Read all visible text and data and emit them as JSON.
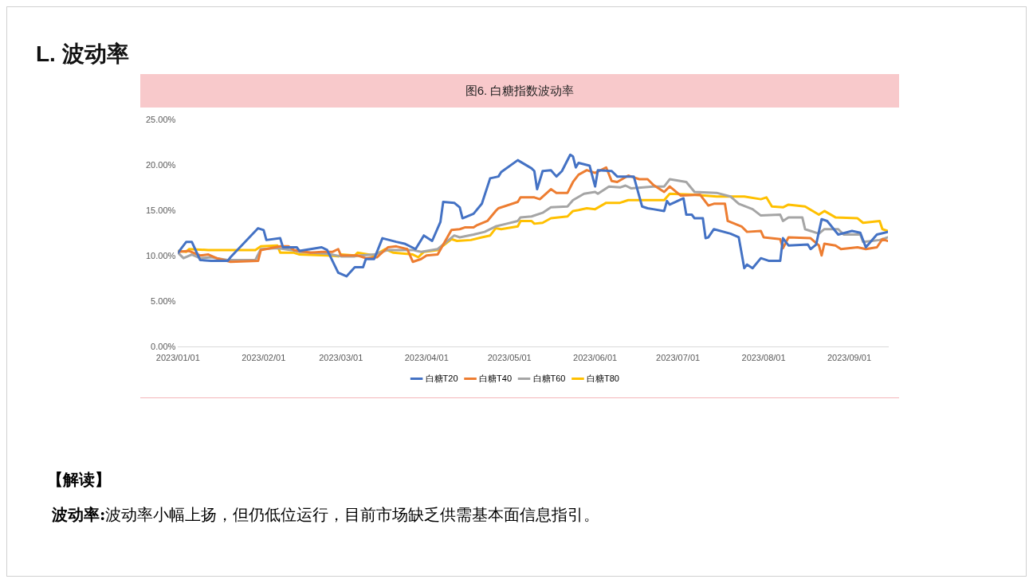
{
  "chart_data": {
    "type": "line",
    "title": "图6. 白糖指数波动率",
    "annotations": [
      "L. 波动率",
      "【解读】",
      "波动率:",
      "波动率小幅上扬，但仍低位运行，目前市场缺乏供需基本面信息指引。"
    ],
    "xlim": [
      "2023-01-01",
      "2023-09-15"
    ],
    "xticks": [
      {
        "value": "2023-01-01",
        "label": "2023/01/01"
      },
      {
        "value": "2023-02-01",
        "label": "2023/02/01"
      },
      {
        "value": "2023-03-01",
        "label": "2023/03/01"
      },
      {
        "value": "2023-04-01",
        "label": "2023/04/01"
      },
      {
        "value": "2023-05-01",
        "label": "2023/05/01"
      },
      {
        "value": "2023-06-01",
        "label": "2023/06/01"
      },
      {
        "value": "2023-07-01",
        "label": "2023/07/01"
      },
      {
        "value": "2023-08-01",
        "label": "2023/08/01"
      },
      {
        "value": "2023-09-01",
        "label": "2023/09/01"
      }
    ],
    "ylim": [
      0,
      25
    ],
    "yticks": [
      {
        "value": 0,
        "label": "0.00%"
      },
      {
        "value": 5,
        "label": "5.00%"
      },
      {
        "value": 10,
        "label": "10.00%"
      },
      {
        "value": 15,
        "label": "15.00%"
      },
      {
        "value": 20,
        "label": "20.00%"
      },
      {
        "value": 25,
        "label": "25.00%"
      }
    ],
    "grid": false,
    "legend": "bottom",
    "marker": "none",
    "line_style": "solid",
    "series": [
      {
        "name": "白糖T20",
        "color": "#4472c4",
        "x": [
          "2023-01-01",
          "2023-01-04",
          "2023-01-06",
          "2023-01-09",
          "2023-01-13",
          "2023-01-19",
          "2023-01-20",
          "2023-01-30",
          "2023-02-01",
          "2023-02-02",
          "2023-02-07",
          "2023-02-08",
          "2023-02-13",
          "2023-02-14",
          "2023-02-22",
          "2023-02-24",
          "2023-02-28",
          "2023-03-03",
          "2023-03-06",
          "2023-03-09",
          "2023-03-10",
          "2023-03-13",
          "2023-03-16",
          "2023-03-21",
          "2023-03-24",
          "2023-03-28",
          "2023-03-31",
          "2023-04-03",
          "2023-04-06",
          "2023-04-07",
          "2023-04-11",
          "2023-04-13",
          "2023-04-14",
          "2023-04-18",
          "2023-04-21",
          "2023-04-24",
          "2023-04-27",
          "2023-04-28",
          "2023-05-04",
          "2023-05-09",
          "2023-05-10",
          "2023-05-11",
          "2023-05-13",
          "2023-05-16",
          "2023-05-18",
          "2023-05-20",
          "2023-05-23",
          "2023-05-24",
          "2023-05-25",
          "2023-05-26",
          "2023-05-30",
          "2023-06-01",
          "2023-06-02",
          "2023-06-07",
          "2023-06-09",
          "2023-06-15",
          "2023-06-18",
          "2023-06-20",
          "2023-06-22",
          "2023-06-26",
          "2023-06-27",
          "2023-06-28",
          "2023-07-03",
          "2023-07-04",
          "2023-07-06",
          "2023-07-07",
          "2023-07-10",
          "2023-07-11",
          "2023-07-12",
          "2023-07-14",
          "2023-07-20",
          "2023-07-23",
          "2023-07-25",
          "2023-07-26",
          "2023-07-28",
          "2023-07-31",
          "2023-08-03",
          "2023-08-07",
          "2023-08-08",
          "2023-08-10",
          "2023-08-17",
          "2023-08-18",
          "2023-08-20",
          "2023-08-22",
          "2023-08-24",
          "2023-08-28",
          "2023-09-02",
          "2023-09-05",
          "2023-09-07",
          "2023-09-11",
          "2023-09-15"
        ],
        "values": [
          10.4,
          11.6,
          11.6,
          9.6,
          9.5,
          9.5,
          9.9,
          13.1,
          12.9,
          11.8,
          12.0,
          11.0,
          11.0,
          10.6,
          11.0,
          10.7,
          8.2,
          7.8,
          8.8,
          8.8,
          9.7,
          9.7,
          12.0,
          11.6,
          11.4,
          10.8,
          12.3,
          11.7,
          13.8,
          16.0,
          15.9,
          15.4,
          14.2,
          14.7,
          15.8,
          18.6,
          18.8,
          19.3,
          20.6,
          19.7,
          19.4,
          17.4,
          19.4,
          19.5,
          18.8,
          19.4,
          21.2,
          21.0,
          19.8,
          20.3,
          20.0,
          17.7,
          19.5,
          19.4,
          18.8,
          18.8,
          15.5,
          15.3,
          15.2,
          15.0,
          16.1,
          15.7,
          16.4,
          14.6,
          14.6,
          14.2,
          14.2,
          12.0,
          12.1,
          13.0,
          12.5,
          12.1,
          8.7,
          9.1,
          8.7,
          9.8,
          9.5,
          9.5,
          12.0,
          11.2,
          11.3,
          10.8,
          11.3,
          14.1,
          13.9,
          12.4,
          12.8,
          12.6,
          11.0,
          12.4,
          12.7
        ]
      },
      {
        "name": "白糖T40",
        "color": "#ed7d31",
        "x": [
          "2023-01-01",
          "2023-01-05",
          "2023-01-09",
          "2023-01-12",
          "2023-01-15",
          "2023-01-20",
          "2023-01-30",
          "2023-01-31",
          "2023-02-07",
          "2023-02-10",
          "2023-02-12",
          "2023-02-18",
          "2023-02-22",
          "2023-02-26",
          "2023-02-28",
          "2023-03-01",
          "2023-03-07",
          "2023-03-10",
          "2023-03-14",
          "2023-03-18",
          "2023-03-21",
          "2023-03-25",
          "2023-03-27",
          "2023-03-30",
          "2023-04-01",
          "2023-04-05",
          "2023-04-10",
          "2023-04-13",
          "2023-04-15",
          "2023-04-18",
          "2023-04-19",
          "2023-04-23",
          "2023-04-26",
          "2023-04-27",
          "2023-05-04",
          "2023-05-05",
          "2023-05-10",
          "2023-05-12",
          "2023-05-16",
          "2023-05-18",
          "2023-05-22",
          "2023-05-24",
          "2023-05-26",
          "2023-05-29",
          "2023-06-01",
          "2023-06-05",
          "2023-06-07",
          "2023-06-09",
          "2023-06-13",
          "2023-06-14",
          "2023-06-17",
          "2023-06-20",
          "2023-06-22",
          "2023-06-26",
          "2023-06-28",
          "2023-07-02",
          "2023-07-09",
          "2023-07-12",
          "2023-07-14",
          "2023-07-18",
          "2023-07-19",
          "2023-07-24",
          "2023-07-26",
          "2023-07-31",
          "2023-08-01",
          "2023-08-07",
          "2023-08-08",
          "2023-08-10",
          "2023-08-18",
          "2023-08-21",
          "2023-08-22",
          "2023-08-23",
          "2023-08-27",
          "2023-08-29",
          "2023-09-04",
          "2023-09-07",
          "2023-09-11",
          "2023-09-13",
          "2023-09-15"
        ],
        "values": [
          10.5,
          10.6,
          10.1,
          10.2,
          9.8,
          9.4,
          9.5,
          10.7,
          11.1,
          11.1,
          10.7,
          10.4,
          10.5,
          10.5,
          10.8,
          10.1,
          10.1,
          9.8,
          9.9,
          11.0,
          11.1,
          10.8,
          9.4,
          9.7,
          10.1,
          10.2,
          12.9,
          13.0,
          13.2,
          13.2,
          13.4,
          13.9,
          15.0,
          15.3,
          16.0,
          16.5,
          16.5,
          16.3,
          17.4,
          17.0,
          17.0,
          18.2,
          19.0,
          19.5,
          19.2,
          19.8,
          18.3,
          18.2,
          18.9,
          18.8,
          18.5,
          18.5,
          17.9,
          17.1,
          17.7,
          16.7,
          16.8,
          15.6,
          15.8,
          15.8,
          13.9,
          13.3,
          12.7,
          12.8,
          12.1,
          11.9,
          10.9,
          12.1,
          12.0,
          11.2,
          10.1,
          11.4,
          11.2,
          10.8,
          11.0,
          10.8,
          11.0,
          11.9,
          11.7
        ]
      },
      {
        "name": "白糖T60",
        "color": "#a5a5a5",
        "x": [
          "2023-01-01",
          "2023-01-03",
          "2023-01-06",
          "2023-01-09",
          "2023-01-13",
          "2023-01-15",
          "2023-01-19",
          "2023-01-29",
          "2023-01-31",
          "2023-02-06",
          "2023-02-11",
          "2023-02-14",
          "2023-02-24",
          "2023-03-01",
          "2023-03-06",
          "2023-03-08",
          "2023-03-13",
          "2023-03-18",
          "2023-03-24",
          "2023-03-27",
          "2023-03-30",
          "2023-04-05",
          "2023-04-11",
          "2023-04-13",
          "2023-04-18",
          "2023-04-22",
          "2023-04-26",
          "2023-04-30",
          "2023-05-04",
          "2023-05-05",
          "2023-05-09",
          "2023-05-13",
          "2023-05-16",
          "2023-05-22",
          "2023-05-24",
          "2023-05-28",
          "2023-06-01",
          "2023-06-02",
          "2023-06-06",
          "2023-06-10",
          "2023-06-12",
          "2023-06-14",
          "2023-06-22",
          "2023-06-26",
          "2023-06-28",
          "2023-07-04",
          "2023-07-07",
          "2023-07-15",
          "2023-07-20",
          "2023-07-23",
          "2023-07-28",
          "2023-07-31",
          "2023-08-07",
          "2023-08-08",
          "2023-08-10",
          "2023-08-15",
          "2023-08-16",
          "2023-08-21",
          "2023-08-23",
          "2023-08-28",
          "2023-08-30",
          "2023-09-05",
          "2023-09-06",
          "2023-09-12",
          "2023-09-15"
        ],
        "values": [
          10.4,
          9.8,
          10.2,
          9.8,
          9.9,
          9.8,
          9.6,
          9.6,
          10.8,
          10.9,
          10.7,
          10.5,
          10.3,
          10.0,
          10.0,
          10.1,
          10.2,
          10.7,
          10.7,
          10.7,
          10.5,
          10.8,
          12.3,
          12.1,
          12.4,
          12.7,
          13.3,
          13.6,
          13.9,
          14.3,
          14.4,
          14.8,
          15.4,
          15.5,
          16.2,
          16.9,
          17.1,
          16.9,
          17.7,
          17.6,
          17.8,
          17.5,
          17.7,
          17.7,
          18.5,
          18.2,
          17.1,
          17.0,
          16.6,
          15.8,
          15.2,
          14.5,
          14.6,
          13.9,
          14.3,
          14.3,
          13.0,
          12.5,
          13.0,
          13.0,
          12.4,
          12.4,
          11.6,
          11.8,
          12.1
        ]
      },
      {
        "name": "白糖T80",
        "color": "#ffc000",
        "x": [
          "2023-01-01",
          "2023-01-04",
          "2023-01-05",
          "2023-01-12",
          "2023-01-29",
          "2023-01-31",
          "2023-02-06",
          "2023-02-07",
          "2023-02-12",
          "2023-02-14",
          "2023-02-24",
          "2023-02-28",
          "2023-03-01",
          "2023-03-06",
          "2023-03-07",
          "2023-03-13",
          "2023-03-17",
          "2023-03-20",
          "2023-03-24",
          "2023-03-27",
          "2023-03-29",
          "2023-03-31",
          "2023-04-05",
          "2023-04-10",
          "2023-04-12",
          "2023-04-17",
          "2023-04-21",
          "2023-04-24",
          "2023-04-26",
          "2023-04-28",
          "2023-05-04",
          "2023-05-05",
          "2023-05-09",
          "2023-05-10",
          "2023-05-13",
          "2023-05-16",
          "2023-05-22",
          "2023-05-24",
          "2023-05-26",
          "2023-05-29",
          "2023-06-01",
          "2023-06-05",
          "2023-06-10",
          "2023-06-13",
          "2023-06-22",
          "2023-06-26",
          "2023-06-28",
          "2023-07-07",
          "2023-07-15",
          "2023-07-25",
          "2023-07-31",
          "2023-08-02",
          "2023-08-04",
          "2023-08-08",
          "2023-08-10",
          "2023-08-16",
          "2023-08-21",
          "2023-08-23",
          "2023-08-27",
          "2023-09-04",
          "2023-09-06",
          "2023-09-12",
          "2023-09-13",
          "2023-09-15"
        ],
        "values": [
          10.6,
          10.5,
          10.8,
          10.7,
          10.7,
          11.1,
          11.2,
          10.4,
          10.4,
          10.2,
          10.1,
          10.0,
          10.2,
          10.1,
          10.4,
          10.1,
          10.8,
          10.4,
          10.3,
          10.2,
          9.9,
          10.5,
          10.7,
          11.9,
          11.7,
          11.8,
          12.1,
          12.3,
          13.1,
          13.0,
          13.3,
          13.9,
          13.9,
          13.6,
          13.7,
          14.2,
          14.4,
          15.0,
          15.1,
          15.3,
          15.2,
          15.9,
          15.9,
          16.2,
          16.2,
          16.2,
          16.9,
          16.8,
          16.6,
          16.6,
          16.3,
          16.5,
          15.5,
          15.4,
          15.7,
          15.5,
          14.6,
          15.0,
          14.3,
          14.2,
          13.7,
          13.9,
          13.0,
          12.8
        ]
      }
    ]
  }
}
